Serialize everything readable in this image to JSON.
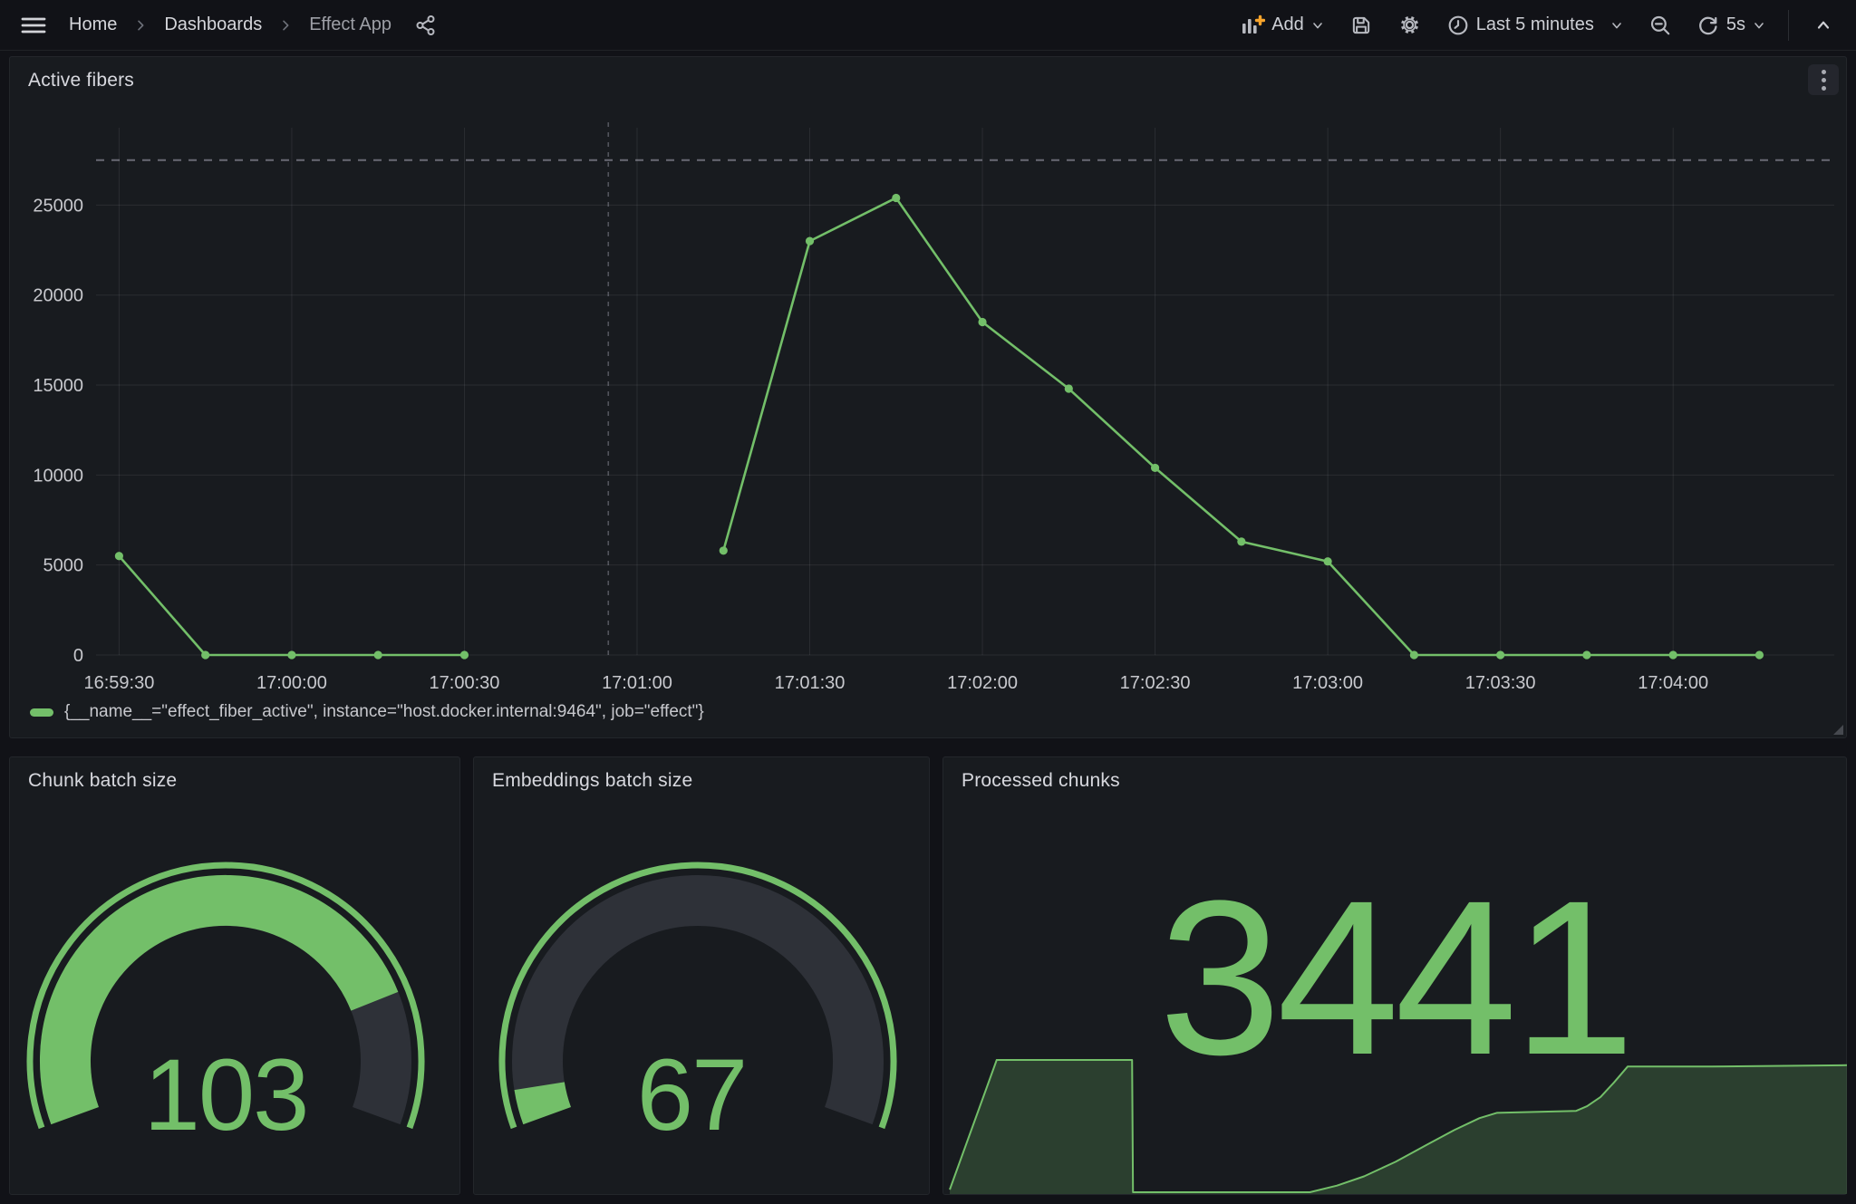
{
  "colors": {
    "green": "#73BF69",
    "orange": "#F8A42C",
    "icon": "#b7b9c0",
    "gauge_track": "#2E3138",
    "grid": "rgba(204,204,220,0.10)",
    "axis_text": "#c8c9ce",
    "dashed_threshold": "rgba(204,204,220,0.45)",
    "dashed_annotation": "rgba(204,204,220,0.32)",
    "spark_fill": "rgba(115,191,105,0.22)"
  },
  "nav": {
    "breadcrumb": [
      {
        "label": "Home"
      },
      {
        "label": "Dashboards"
      },
      {
        "label": "Effect App"
      }
    ],
    "add_label": "Add",
    "time_range": "Last 5 minutes",
    "refresh_interval": "5s"
  },
  "active_fibers": {
    "title": "Active fibers",
    "legend": "{__name__=\"effect_fiber_active\", instance=\"host.docker.internal:9464\", job=\"effect\"}",
    "chart_data": {
      "type": "line",
      "title": "Active fibers",
      "series_color": "#73BF69",
      "x_domain_s": [
        -4,
        298
      ],
      "y_domain": [
        0,
        29300
      ],
      "y_ticks": [
        0,
        5000,
        10000,
        15000,
        20000,
        25000
      ],
      "x_ticks": [
        {
          "s": 0,
          "label": "16:59:30"
        },
        {
          "s": 30,
          "label": "17:00:00"
        },
        {
          "s": 60,
          "label": "17:00:30"
        },
        {
          "s": 90,
          "label": "17:01:00"
        },
        {
          "s": 120,
          "label": "17:01:30"
        },
        {
          "s": 150,
          "label": "17:02:00"
        },
        {
          "s": 180,
          "label": "17:02:30"
        },
        {
          "s": 210,
          "label": "17:03:00"
        },
        {
          "s": 240,
          "label": "17:03:30"
        },
        {
          "s": 270,
          "label": "17:04:00"
        }
      ],
      "threshold_dashed_value": 27500,
      "annotation_dashed_s": 85,
      "series": [
        {
          "name": "{__name__=\"effect_fiber_active\", instance=\"host.docker.internal:9464\", job=\"effect\"}",
          "segments": [
            [
              [
                0,
                5500
              ],
              [
                15,
                0
              ],
              [
                30,
                0
              ],
              [
                45,
                0
              ],
              [
                60,
                0
              ]
            ],
            [
              [
                105,
                5800
              ],
              [
                120,
                23000
              ],
              [
                135,
                25400
              ],
              [
                150,
                18500
              ],
              [
                165,
                14800
              ],
              [
                180,
                10400
              ],
              [
                195,
                6300
              ],
              [
                210,
                5200
              ],
              [
                225,
                0
              ],
              [
                240,
                0
              ],
              [
                255,
                0
              ],
              [
                270,
                0
              ],
              [
                285,
                0
              ]
            ]
          ]
        }
      ]
    }
  },
  "chunk_batch": {
    "title": "Chunk batch size",
    "value": "103",
    "chart_data": {
      "type": "gauge",
      "value": 103,
      "arc_fraction": 0.81,
      "color": "#73BF69"
    }
  },
  "embeddings_batch": {
    "title": "Embeddings batch size",
    "value": "67",
    "chart_data": {
      "type": "gauge",
      "value": 67,
      "arc_fraction": 0.05,
      "color": "#73BF69"
    }
  },
  "processed_chunks": {
    "title": "Processed chunks",
    "value": "3441",
    "chart_data": {
      "type": "area-sparkline",
      "points_normalized": [
        [
          0.006,
          0.02
        ],
        [
          0.058,
          1.0
        ],
        [
          0.105,
          1.0
        ],
        [
          0.155,
          1.0
        ],
        [
          0.208,
          1.0
        ],
        [
          0.209,
          0.0
        ],
        [
          0.405,
          0.0
        ],
        [
          0.435,
          0.05
        ],
        [
          0.465,
          0.12
        ],
        [
          0.5,
          0.23
        ],
        [
          0.535,
          0.36
        ],
        [
          0.565,
          0.47
        ],
        [
          0.593,
          0.56
        ],
        [
          0.612,
          0.6
        ],
        [
          0.7,
          0.615
        ],
        [
          0.712,
          0.65
        ],
        [
          0.727,
          0.72
        ],
        [
          0.742,
          0.83
        ],
        [
          0.757,
          0.95
        ],
        [
          0.85,
          0.95
        ],
        [
          1.0,
          0.96
        ]
      ]
    }
  }
}
